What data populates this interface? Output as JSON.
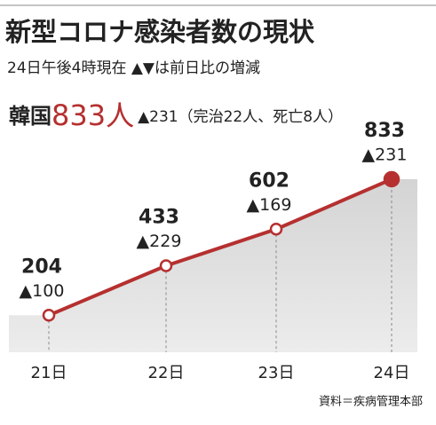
{
  "chart_data": {
    "type": "line",
    "title": "新型コロナ感染者数の現状",
    "subtitle": "24日午後4時現在 ▲▼は前日比の増減",
    "headline": {
      "label": "韓国",
      "count": "833人",
      "change": "▲231（完治22人、死亡8人）"
    },
    "categories": [
      "21日",
      "22日",
      "23日",
      "24日"
    ],
    "values": [
      204,
      433,
      602,
      833
    ],
    "change_labels": [
      "▲100",
      "▲229",
      "▲169",
      "▲231"
    ],
    "color": "#b5302f",
    "source": "資料＝疾病管理本部"
  }
}
